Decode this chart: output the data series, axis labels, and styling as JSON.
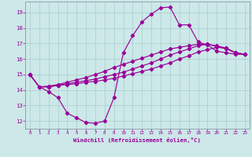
{
  "xlabel": "Windchill (Refroidissement éolien,°C)",
  "background_color": "#cce8e8",
  "grid_color": "#aacccc",
  "line_color": "#990099",
  "xlim": [
    -0.5,
    23.5
  ],
  "ylim": [
    11.5,
    19.7
  ],
  "xticks": [
    0,
    1,
    2,
    3,
    4,
    5,
    6,
    7,
    8,
    9,
    10,
    11,
    12,
    13,
    14,
    15,
    16,
    17,
    18,
    19,
    20,
    21,
    22,
    23
  ],
  "yticks": [
    12,
    13,
    14,
    15,
    16,
    17,
    18,
    19
  ],
  "series": [
    [
      15.0,
      14.2,
      13.9,
      13.5,
      12.5,
      12.2,
      11.9,
      11.85,
      12.0,
      13.5,
      16.4,
      17.5,
      18.4,
      18.9,
      19.3,
      19.35,
      18.2,
      18.2,
      17.1,
      16.9,
      16.5,
      16.4,
      16.3,
      16.3
    ],
    [
      15.0,
      14.2,
      14.2,
      14.3,
      14.35,
      14.4,
      14.5,
      14.55,
      14.65,
      14.75,
      14.9,
      15.05,
      15.2,
      15.35,
      15.55,
      15.75,
      16.0,
      16.2,
      16.45,
      16.6,
      16.75,
      16.7,
      16.4,
      16.3
    ],
    [
      15.0,
      14.2,
      14.2,
      14.3,
      14.4,
      14.5,
      14.6,
      14.7,
      14.85,
      15.0,
      15.15,
      15.35,
      15.55,
      15.75,
      16.0,
      16.25,
      16.45,
      16.65,
      16.85,
      16.95,
      16.8,
      16.65,
      16.4,
      16.3
    ],
    [
      15.0,
      14.2,
      14.25,
      14.35,
      14.5,
      14.65,
      14.8,
      15.0,
      15.2,
      15.45,
      15.65,
      15.85,
      16.05,
      16.25,
      16.45,
      16.65,
      16.75,
      16.85,
      16.95,
      16.95,
      16.85,
      16.7,
      16.4,
      16.3
    ]
  ],
  "marker_size": 2.2,
  "linewidth": 0.85
}
